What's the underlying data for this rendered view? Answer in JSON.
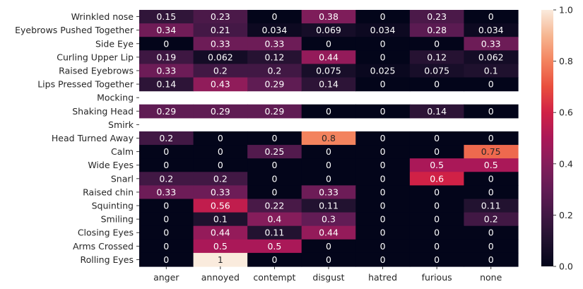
{
  "chart_data": {
    "type": "heatmap",
    "title": "",
    "xlabel": "",
    "ylabel": "",
    "x_categories": [
      "anger",
      "annoyed",
      "contempt",
      "disgust",
      "hatred",
      "furious",
      "none"
    ],
    "y_categories": [
      "Wrinkled nose",
      "Eyebrows Pushed Together",
      "Side Eye",
      "Curling Upper Lip",
      "Raised Eyebrows",
      "Lips Pressed Together",
      "Mocking",
      "Shaking Head",
      "Smirk",
      "Head Turned Away",
      "Calm",
      "Wide Eyes",
      "Snarl",
      "Raised chin",
      "Squinting",
      "Smiling",
      "Closing Eyes",
      "Arms Crossed",
      "Rolling Eyes"
    ],
    "values": [
      [
        0.15,
        0.23,
        0,
        0.38,
        0,
        0.23,
        0
      ],
      [
        0.34,
        0.21,
        0.034,
        0.069,
        0.034,
        0.28,
        0.034
      ],
      [
        0,
        0.33,
        0.33,
        0,
        0,
        0,
        0.33
      ],
      [
        0.19,
        0.062,
        0.12,
        0.44,
        0,
        0.12,
        0.062
      ],
      [
        0.33,
        0.2,
        0.2,
        0.075,
        0.025,
        0.075,
        0.1
      ],
      [
        0.14,
        0.43,
        0.29,
        0.14,
        0,
        0,
        0
      ],
      [
        null,
        null,
        null,
        null,
        null,
        null,
        null
      ],
      [
        0.29,
        0.29,
        0.29,
        0,
        0,
        0.14,
        0
      ],
      [
        null,
        null,
        null,
        null,
        null,
        null,
        null
      ],
      [
        0.2,
        0,
        0,
        0.8,
        0,
        0,
        0
      ],
      [
        0,
        0,
        0.25,
        0,
        0,
        0,
        0.75
      ],
      [
        0,
        0,
        0,
        0,
        0,
        0.5,
        0.5
      ],
      [
        0.2,
        0.2,
        0,
        0,
        0,
        0.6,
        0
      ],
      [
        0.33,
        0.33,
        0,
        0.33,
        0,
        0,
        0
      ],
      [
        0,
        0.56,
        0.22,
        0.11,
        0,
        0,
        0.11
      ],
      [
        0,
        0.1,
        0.4,
        0.3,
        0,
        0,
        0.2
      ],
      [
        0,
        0.44,
        0.11,
        0.44,
        0,
        0,
        0
      ],
      [
        0,
        0.5,
        0.5,
        0,
        0,
        0,
        0
      ],
      [
        0,
        1,
        0,
        0,
        0,
        0,
        0
      ]
    ],
    "labels": [
      [
        "0.15",
        "0.23",
        "0",
        "0.38",
        "0",
        "0.23",
        "0"
      ],
      [
        "0.34",
        "0.21",
        "0.034",
        "0.069",
        "0.034",
        "0.28",
        "0.034"
      ],
      [
        "0",
        "0.33",
        "0.33",
        "0",
        "0",
        "0",
        "0.33"
      ],
      [
        "0.19",
        "0.062",
        "0.12",
        "0.44",
        "0",
        "0.12",
        "0.062"
      ],
      [
        "0.33",
        "0.2",
        "0.2",
        "0.075",
        "0.025",
        "0.075",
        "0.1"
      ],
      [
        "0.14",
        "0.43",
        "0.29",
        "0.14",
        "0",
        "0",
        "0"
      ],
      [
        "",
        "",
        "",
        "",
        "",
        "",
        ""
      ],
      [
        "0.29",
        "0.29",
        "0.29",
        "0",
        "0",
        "0.14",
        "0"
      ],
      [
        "",
        "",
        "",
        "",
        "",
        "",
        ""
      ],
      [
        "0.2",
        "0",
        "0",
        "0.8",
        "0",
        "0",
        "0"
      ],
      [
        "0",
        "0",
        "0.25",
        "0",
        "0",
        "0",
        "0.75"
      ],
      [
        "0",
        "0",
        "0",
        "0",
        "0",
        "0.5",
        "0.5"
      ],
      [
        "0.2",
        "0.2",
        "0",
        "0",
        "0",
        "0.6",
        "0"
      ],
      [
        "0.33",
        "0.33",
        "0",
        "0.33",
        "0",
        "0",
        "0"
      ],
      [
        "0",
        "0.56",
        "0.22",
        "0.11",
        "0",
        "0",
        "0.11"
      ],
      [
        "0",
        "0.1",
        "0.4",
        "0.3",
        "0",
        "0",
        "0.2"
      ],
      [
        "0",
        "0.44",
        "0.11",
        "0.44",
        "0",
        "0",
        "0"
      ],
      [
        "0",
        "0.5",
        "0.5",
        "0",
        "0",
        "0",
        "0"
      ],
      [
        "0",
        "1",
        "0",
        "0",
        "0",
        "0",
        "0"
      ]
    ],
    "colorbar": {
      "range": [
        0.0,
        1.0
      ],
      "ticks": [
        "0.0",
        "0.2",
        "0.4",
        "0.6",
        "0.8",
        "1.0"
      ],
      "colormap": "rocket"
    },
    "grid": false,
    "legend": "colorbar-right"
  }
}
